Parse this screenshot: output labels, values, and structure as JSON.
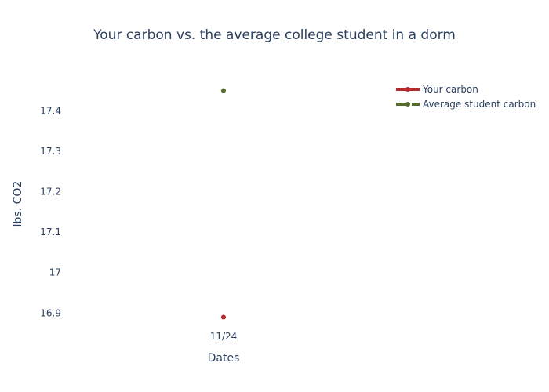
{
  "chart_data": {
    "type": "line",
    "title": "Your carbon vs. the average college student in a dorm",
    "xlabel": "Dates",
    "ylabel": "lbs. CO2",
    "categories": [
      "11/24"
    ],
    "ylim": [
      16.86,
      17.48
    ],
    "yticks": [
      "16.9",
      "17",
      "17.1",
      "17.2",
      "17.3",
      "17.4"
    ],
    "grid": false,
    "legend_position": "top-right",
    "series": [
      {
        "name": "Your carbon",
        "values": [
          16.89
        ],
        "color": "#b22a2a",
        "dash": "solid"
      },
      {
        "name": "Average student carbon",
        "values": [
          17.45
        ],
        "color": "#556b2f",
        "dash": "dash"
      }
    ]
  }
}
